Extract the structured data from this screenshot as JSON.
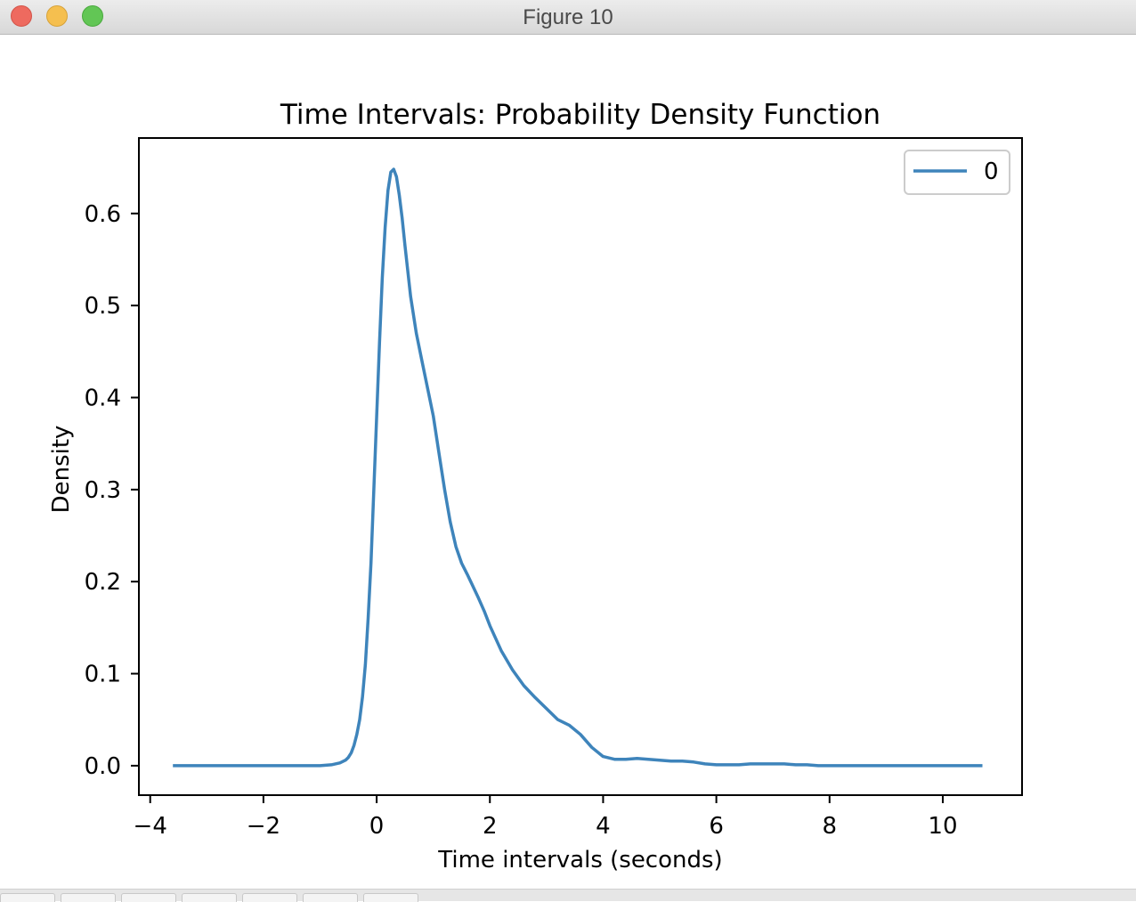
{
  "window": {
    "title": "Figure 10"
  },
  "chart_data": {
    "type": "line",
    "title": "Time Intervals: Probability Density Function",
    "xlabel": "Time intervals (seconds)",
    "ylabel": "Density",
    "xlim": [
      -4.2,
      11.4
    ],
    "ylim": [
      -0.032,
      0.682
    ],
    "xticks": [
      -4,
      -2,
      0,
      2,
      4,
      6,
      8,
      10
    ],
    "xtick_labels": [
      "−4",
      "−2",
      "0",
      "2",
      "4",
      "6",
      "8",
      "10"
    ],
    "yticks": [
      0.0,
      0.1,
      0.2,
      0.3,
      0.4,
      0.5,
      0.6
    ],
    "ytick_labels": [
      "0.0",
      "0.1",
      "0.2",
      "0.3",
      "0.4",
      "0.5",
      "0.6"
    ],
    "grid": false,
    "legend": {
      "position": "top-right",
      "entries": [
        "0"
      ]
    },
    "series": [
      {
        "name": "0",
        "color": "#3e84bb",
        "x": [
          -3.6,
          -2.0,
          -1.0,
          -0.8,
          -0.65,
          -0.55,
          -0.5,
          -0.45,
          -0.4,
          -0.35,
          -0.3,
          -0.25,
          -0.2,
          -0.15,
          -0.1,
          -0.05,
          0.0,
          0.05,
          0.1,
          0.15,
          0.2,
          0.25,
          0.3,
          0.35,
          0.4,
          0.45,
          0.5,
          0.6,
          0.7,
          0.8,
          0.9,
          1.0,
          1.1,
          1.2,
          1.3,
          1.4,
          1.5,
          1.6,
          1.7,
          1.8,
          1.9,
          2.0,
          2.2,
          2.4,
          2.6,
          2.8,
          3.0,
          3.2,
          3.4,
          3.6,
          3.8,
          4.0,
          4.2,
          4.4,
          4.6,
          4.8,
          5.0,
          5.2,
          5.4,
          5.6,
          5.8,
          6.0,
          6.2,
          6.4,
          6.6,
          6.8,
          7.0,
          7.2,
          7.4,
          7.6,
          7.8,
          8.0,
          9.0,
          10.0,
          10.7
        ],
        "y": [
          0.0,
          0.0,
          0.0,
          0.001,
          0.003,
          0.006,
          0.009,
          0.014,
          0.022,
          0.034,
          0.05,
          0.075,
          0.11,
          0.16,
          0.22,
          0.3,
          0.38,
          0.46,
          0.53,
          0.585,
          0.625,
          0.645,
          0.648,
          0.64,
          0.62,
          0.595,
          0.565,
          0.51,
          0.47,
          0.44,
          0.41,
          0.38,
          0.34,
          0.3,
          0.265,
          0.238,
          0.22,
          0.208,
          0.195,
          0.182,
          0.168,
          0.152,
          0.125,
          0.104,
          0.087,
          0.074,
          0.062,
          0.05,
          0.044,
          0.034,
          0.02,
          0.01,
          0.007,
          0.007,
          0.008,
          0.007,
          0.006,
          0.005,
          0.005,
          0.004,
          0.002,
          0.001,
          0.001,
          0.001,
          0.002,
          0.002,
          0.002,
          0.002,
          0.001,
          0.001,
          0.0,
          0.0,
          0.0,
          0.0,
          0.0
        ]
      }
    ]
  }
}
